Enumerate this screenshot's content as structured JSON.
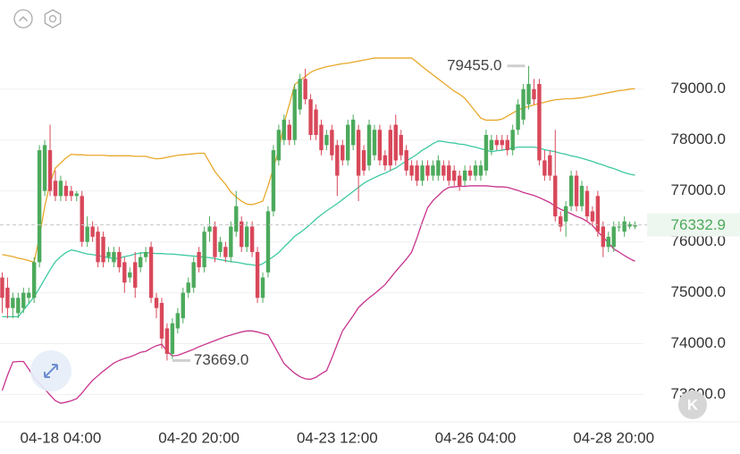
{
  "chart_data": {
    "type": "candlestick",
    "categories": [
      null,
      null,
      null,
      null,
      null,
      null,
      null,
      null,
      null,
      null,
      null,
      "04-18 04:00",
      null,
      null,
      null,
      null,
      null,
      null,
      null,
      null,
      null,
      null,
      null,
      null,
      null,
      null,
      null,
      null,
      null,
      null,
      null,
      null,
      null,
      null,
      null,
      null,
      null,
      "04-20 20:00",
      null,
      null,
      null,
      null,
      null,
      null,
      null,
      null,
      null,
      null,
      null,
      null,
      null,
      null,
      null,
      null,
      null,
      null,
      null,
      null,
      null,
      null,
      null,
      null,
      null,
      "04-23 12:00",
      null,
      null,
      null,
      null,
      null,
      null,
      null,
      null,
      null,
      null,
      null,
      null,
      null,
      null,
      null,
      null,
      null,
      null,
      null,
      null,
      null,
      null,
      null,
      null,
      null,
      "04-26 04:00",
      null,
      null,
      null,
      null,
      null,
      null,
      null,
      null,
      null,
      null,
      null,
      null,
      null,
      null,
      null,
      null,
      null,
      null,
      null,
      null,
      null,
      null,
      null,
      null,
      null,
      "04-28 20:00",
      null,
      null,
      null,
      null
    ],
    "open": [
      75300,
      75100,
      74700,
      74600,
      74700,
      74900,
      74900,
      75600,
      77000,
      77800,
      77200,
      76900,
      77100,
      77000,
      76900,
      76900,
      76000,
      76300,
      76200,
      76100,
      75700,
      75600,
      75800,
      75600,
      75300,
      75600,
      75500,
      75700,
      75900,
      74900,
      74800,
      74300,
      73800,
      74300,
      74500,
      75000,
      75100,
      75800,
      75500,
      76200,
      76300,
      75800,
      75900,
      75700,
      76200,
      76400,
      75900,
      76300,
      75800,
      74900,
      75400,
      76600,
      77600,
      78000,
      78300,
      78000,
      78600,
      79200,
      78800,
      78600,
      78300,
      77900,
      78200,
      77900,
      77900,
      77600,
      77900,
      78200,
      77800,
      77500,
      77700,
      78200,
      77700,
      78200,
      78300,
      78100,
      77800,
      77500,
      77500,
      77200,
      77500,
      77300,
      77300,
      77500,
      77500,
      77400,
      77300,
      77200,
      77400,
      77300,
      77300,
      77400,
      77800,
      78000,
      78000,
      78000,
      77800,
      78200,
      78400,
      78700,
      79000,
      79100,
      77600,
      77700,
      77300,
      76500,
      76400,
      76700,
      77300,
      76700,
      77000,
      76600,
      76900,
      76300,
      75900,
      75900,
      76300,
      76200,
      76300,
      76300
    ],
    "high": [
      75400,
      75300,
      75000,
      75000,
      75100,
      75100,
      75700,
      77900,
      78000,
      78300,
      77400,
      77300,
      77200,
      77100,
      77000,
      77000,
      76500,
      76400,
      76300,
      76200,
      75900,
      75900,
      75900,
      75700,
      75500,
      75800,
      75800,
      75900,
      76000,
      75000,
      74900,
      74400,
      74500,
      74700,
      75100,
      75300,
      75700,
      75900,
      76300,
      76500,
      76400,
      76100,
      76000,
      76400,
      77000,
      76500,
      76400,
      76400,
      75900,
      75400,
      76700,
      77900,
      78300,
      78500,
      78400,
      79100,
      79300,
      79400,
      78900,
      78700,
      78400,
      78200,
      78300,
      78000,
      78000,
      78400,
      78500,
      78300,
      77900,
      78400,
      78300,
      78300,
      77800,
      78300,
      78500,
      78200,
      77900,
      77600,
      77600,
      77600,
      77600,
      77600,
      77700,
      77600,
      77600,
      77500,
      77400,
      77500,
      77500,
      77600,
      77600,
      78200,
      78100,
      78100,
      78100,
      78100,
      78300,
      78800,
      79100,
      79455,
      79200,
      79200,
      77800,
      77800,
      78200,
      76600,
      76800,
      77400,
      77400,
      77200,
      77100,
      76700,
      77000,
      76400,
      76200,
      76400,
      76400,
      76500,
      76400,
      76400
    ],
    "low": [
      74600,
      74500,
      74500,
      74500,
      74600,
      74800,
      74800,
      75500,
      76900,
      76900,
      76800,
      76800,
      76800,
      76800,
      76800,
      75900,
      75900,
      76000,
      75500,
      75500,
      75600,
      75500,
      75400,
      75000,
      75200,
      74900,
      75400,
      75600,
      74800,
      74500,
      73900,
      73669,
      73700,
      74200,
      74400,
      74900,
      75000,
      75400,
      75400,
      76000,
      75600,
      75700,
      75600,
      75600,
      76100,
      75800,
      75800,
      75700,
      74800,
      74800,
      75300,
      76500,
      77500,
      77900,
      77900,
      77900,
      78500,
      78700,
      78000,
      78000,
      77700,
      77800,
      77600,
      76900,
      77500,
      77500,
      77800,
      76800,
      77300,
      77400,
      77600,
      77500,
      77400,
      77400,
      77500,
      77600,
      77300,
      77200,
      77100,
      77100,
      77200,
      77200,
      77200,
      77200,
      77100,
      77100,
      77000,
      77100,
      77200,
      77200,
      77200,
      77300,
      77700,
      77800,
      77800,
      77700,
      77700,
      78100,
      78300,
      78600,
      78700,
      77500,
      77200,
      77200,
      76400,
      76200,
      76100,
      76600,
      76600,
      76600,
      76400,
      76300,
      76100,
      75700,
      75800,
      75800,
      76200,
      76100,
      76250,
      76250
    ],
    "close": [
      74900,
      74700,
      74900,
      74900,
      75000,
      75000,
      75600,
      77800,
      77900,
      77000,
      76900,
      77200,
      76900,
      76900,
      76950,
      76000,
      76300,
      76100,
      75600,
      75600,
      75800,
      75800,
      75500,
      75200,
      75400,
      75100,
      75700,
      75800,
      74900,
      74700,
      74100,
      73800,
      74400,
      74600,
      75000,
      75200,
      75600,
      75500,
      76200,
      76300,
      75700,
      76000,
      75700,
      76300,
      76700,
      75900,
      76300,
      75800,
      74900,
      75300,
      76600,
      77800,
      78200,
      78400,
      78000,
      79000,
      79200,
      78800,
      78100,
      78100,
      77800,
      78100,
      77700,
      77300,
      77600,
      78300,
      78400,
      77300,
      77400,
      78300,
      78200,
      77600,
      77500,
      77500,
      77600,
      77700,
      77400,
      77300,
      77200,
      77500,
      77300,
      77500,
      77600,
      77300,
      77200,
      77200,
      77100,
      77400,
      77300,
      77500,
      77500,
      78100,
      78000,
      77900,
      77900,
      77800,
      78200,
      78700,
      79000,
      79100,
      78800,
      77600,
      77300,
      77300,
      76500,
      76300,
      76700,
      77300,
      76700,
      77100,
      76500,
      76400,
      76200,
      75900,
      76100,
      76300,
      76300,
      76400,
      76350,
      76332.9
    ],
    "up_color": "#4caa5c",
    "down_color": "#d8485a",
    "series": [
      {
        "color": "#e8a82a",
        "values": [
          75750,
          75730,
          75710,
          75680,
          75660,
          75630,
          75600,
          76100,
          76700,
          77150,
          77450,
          77550,
          77650,
          77720,
          77710,
          77710,
          77700,
          77700,
          77700,
          77700,
          77690,
          77690,
          77690,
          77690,
          77690,
          77680,
          77680,
          77680,
          77650,
          77630,
          77640,
          77660,
          77680,
          77700,
          77710,
          77720,
          77730,
          77740,
          77740,
          77560,
          77380,
          77250,
          77130,
          76980,
          76880,
          76800,
          76740,
          76730,
          76760,
          76800,
          77100,
          77450,
          77800,
          78330,
          78700,
          79090,
          79170,
          79250,
          79330,
          79380,
          79410,
          79440,
          79460,
          79480,
          79500,
          79510,
          79530,
          79550,
          79570,
          79590,
          79610,
          79610,
          79610,
          79610,
          79610,
          79610,
          79610,
          79610,
          79530,
          79440,
          79360,
          79280,
          79200,
          79120,
          79040,
          78960,
          78900,
          78820,
          78690,
          78560,
          78430,
          78390,
          78390,
          78390,
          78410,
          78470,
          78530,
          78590,
          78630,
          78660,
          78690,
          78720,
          78740,
          78770,
          78790,
          78800,
          78810,
          78810,
          78820,
          78830,
          78850,
          78870,
          78890,
          78910,
          78930,
          78950,
          78970,
          78980,
          79000,
          79010
        ]
      },
      {
        "color": "#3cc9a2",
        "values": [
          74530,
          74530,
          74530,
          74530,
          74660,
          74790,
          74920,
          75090,
          75270,
          75450,
          75610,
          75710,
          75790,
          75840,
          75820,
          75790,
          75760,
          75750,
          75730,
          75710,
          75690,
          75670,
          75680,
          75710,
          75730,
          75760,
          75780,
          75790,
          75780,
          75770,
          75770,
          75760,
          75760,
          75750,
          75740,
          75730,
          75720,
          75710,
          75700,
          75690,
          75670,
          75650,
          75630,
          75610,
          75600,
          75580,
          75560,
          75550,
          75530,
          75570,
          75640,
          75710,
          75790,
          75900,
          76000,
          76110,
          76180,
          76260,
          76350,
          76450,
          76530,
          76610,
          76680,
          76750,
          76830,
          76910,
          76990,
          77070,
          77150,
          77210,
          77260,
          77310,
          77350,
          77400,
          77450,
          77520,
          77590,
          77650,
          77720,
          77800,
          77860,
          77930,
          77980,
          77970,
          77950,
          77940,
          77920,
          77910,
          77880,
          77860,
          77830,
          77800,
          77770,
          77790,
          77800,
          77820,
          77840,
          77860,
          77860,
          77860,
          77860,
          77840,
          77810,
          77790,
          77770,
          77740,
          77720,
          77690,
          77670,
          77640,
          77610,
          77580,
          77540,
          77510,
          77470,
          77440,
          77400,
          77360,
          77330,
          77310
        ]
      },
      {
        "color": "#c8338e",
        "values": [
          73080,
          73380,
          73640,
          73650,
          73650,
          73500,
          73330,
          73220,
          73110,
          72990,
          72880,
          72830,
          72850,
          72880,
          72920,
          73030,
          73160,
          73280,
          73370,
          73460,
          73540,
          73620,
          73670,
          73710,
          73740,
          73780,
          73830,
          73850,
          73910,
          73960,
          73990,
          73850,
          73760,
          73770,
          73810,
          73850,
          73890,
          73940,
          73980,
          74020,
          74060,
          74100,
          74140,
          74170,
          74200,
          74230,
          74250,
          74250,
          74230,
          74200,
          74170,
          73990,
          73800,
          73610,
          73510,
          73420,
          73350,
          73310,
          73300,
          73340,
          73410,
          73470,
          73720,
          73990,
          74250,
          74400,
          74550,
          74710,
          74810,
          74900,
          74980,
          75070,
          75160,
          75290,
          75420,
          75540,
          75660,
          75800,
          76080,
          76390,
          76670,
          76810,
          76910,
          77010,
          77070,
          77080,
          77090,
          77090,
          77100,
          77100,
          77100,
          77100,
          77090,
          77080,
          77080,
          77070,
          77040,
          77010,
          76970,
          76940,
          76910,
          76870,
          76820,
          76770,
          76700,
          76640,
          76600,
          76550,
          76500,
          76460,
          76400,
          76320,
          76200,
          76090,
          75980,
          75860,
          75800,
          75730,
          75670,
          75620
        ]
      }
    ],
    "ylim": [
      72500,
      80750
    ],
    "yticks": [
      {
        "value": 73000,
        "label": "73000.0"
      },
      {
        "value": 74000,
        "label": "74000.0"
      },
      {
        "value": 75000,
        "label": "75000.0"
      },
      {
        "value": 76000,
        "label": "76000.0"
      },
      {
        "value": 77000,
        "label": "77000.0"
      },
      {
        "value": 78000,
        "label": "78000.0"
      },
      {
        "value": 79000,
        "label": "79000.0"
      }
    ],
    "grid": true,
    "annotations": [
      {
        "text": "79455.0"
      },
      {
        "text": "73669.0"
      }
    ]
  },
  "toolbar": {
    "k_button": "K"
  }
}
